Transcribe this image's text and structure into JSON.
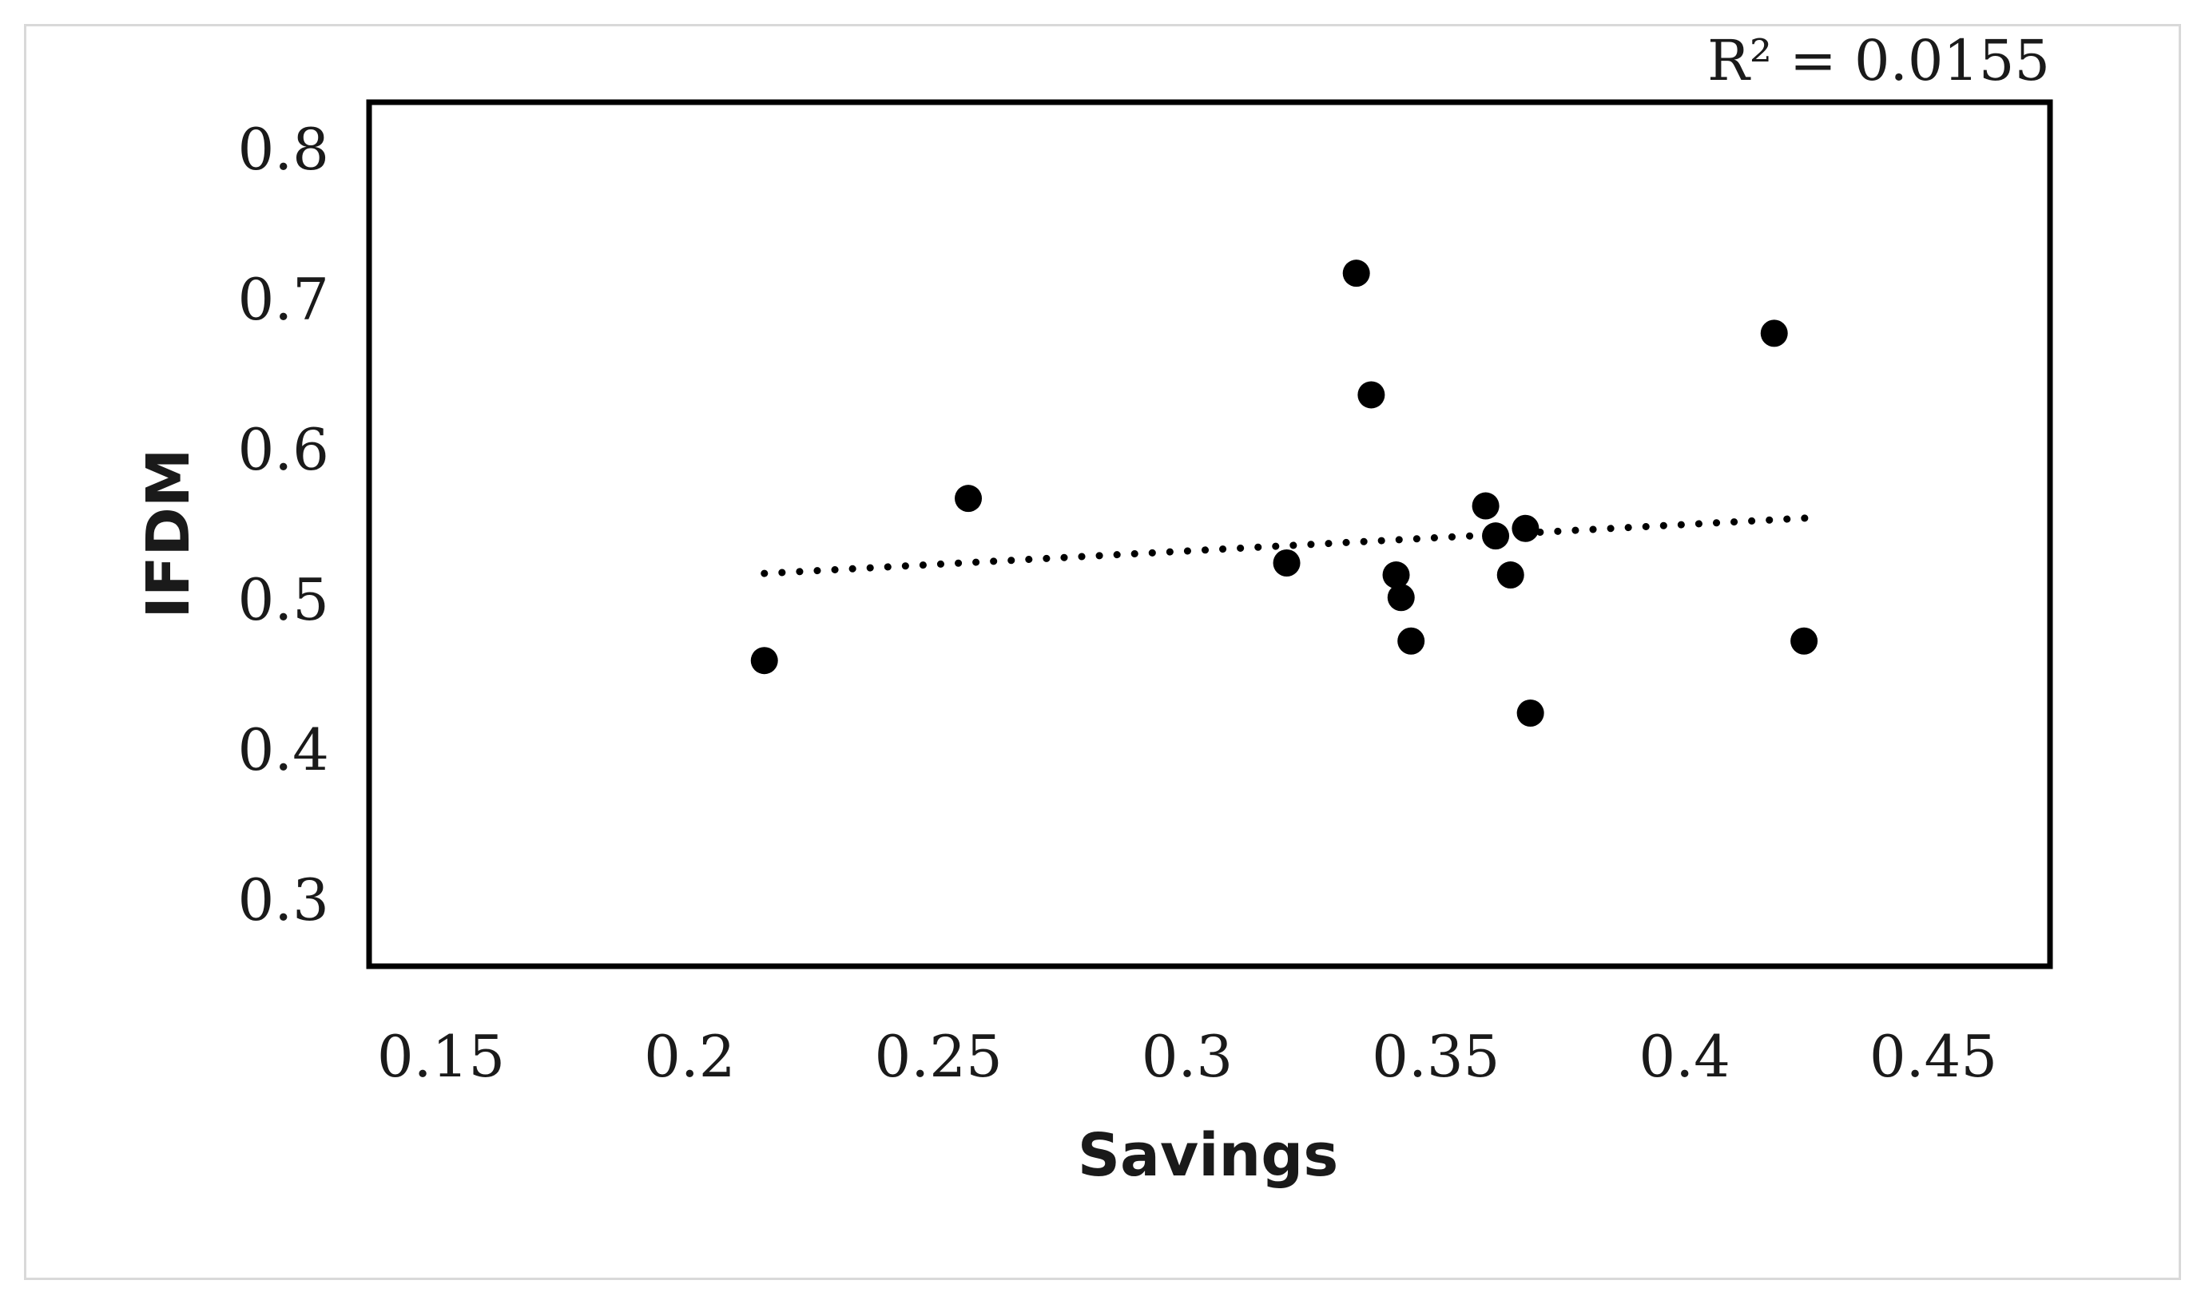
{
  "chart_data": {
    "type": "scatter",
    "title": "",
    "xlabel": "Savings",
    "ylabel": "IFDM",
    "xlim": [
      0.14,
      0.47
    ],
    "ylim": [
      0.25,
      0.83
    ],
    "xticks": [
      "0.15",
      "0.2",
      "0.25",
      "0.3",
      "0.35",
      "0.4",
      "0.45"
    ],
    "yticks": [
      "0.8",
      "0.7",
      "0.6",
      "0.5",
      "0.4",
      "0.3"
    ],
    "annotation": "R² = 0.0155",
    "grid": false,
    "legend": "none",
    "marker_color": "#000000",
    "trendline": {
      "style": "dotted",
      "x": [
        0.215,
        0.425
      ],
      "y": [
        0.518,
        0.555
      ]
    },
    "series": [
      {
        "x": [
          0.215,
          0.256,
          0.32,
          0.334,
          0.337,
          0.342,
          0.343,
          0.345,
          0.36,
          0.362,
          0.365,
          0.368,
          0.369,
          0.418,
          0.424
        ],
        "y": [
          0.46,
          0.568,
          0.525,
          0.718,
          0.637,
          0.517,
          0.502,
          0.473,
          0.563,
          0.543,
          0.517,
          0.548,
          0.425,
          0.678,
          0.473
        ]
      }
    ]
  }
}
